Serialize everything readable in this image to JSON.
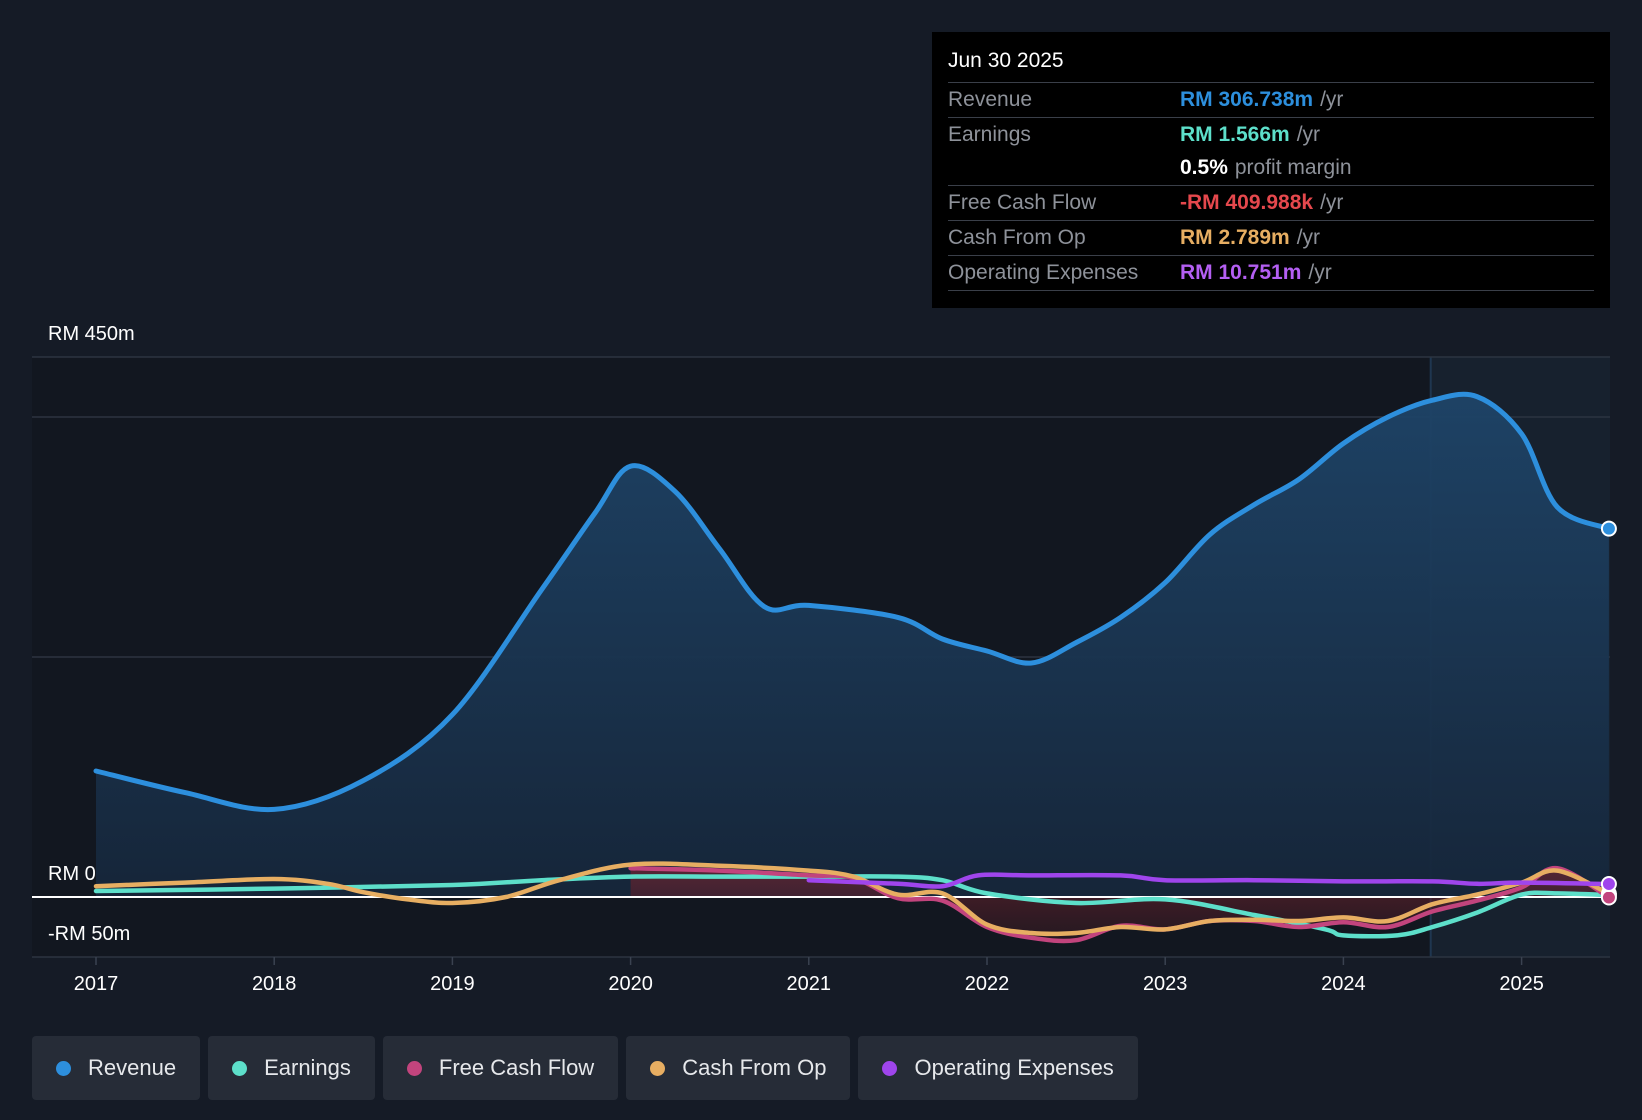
{
  "chart_data": {
    "type": "area",
    "title": "",
    "y_axis": {
      "label_top": "RM 450m",
      "label_zero": "RM 0",
      "label_bottom": "-RM 50m",
      "ylim": [
        -50,
        450
      ]
    },
    "x_ticks": [
      "2017",
      "2018",
      "2019",
      "2020",
      "2021",
      "2022",
      "2023",
      "2024",
      "2025"
    ],
    "x_range": [
      2016.63,
      2025.49
    ],
    "forecast_start": 2024.49,
    "series": [
      {
        "name": "Revenue",
        "color": "#2d8fdd",
        "fill": true,
        "x": [
          2017.0,
          2017.5,
          2018.0,
          2018.5,
          2019.0,
          2019.5,
          2019.8,
          2020.0,
          2020.25,
          2020.5,
          2020.75,
          2021.0,
          2021.5,
          2021.75,
          2022.0,
          2022.25,
          2022.5,
          2022.75,
          2023.0,
          2023.25,
          2023.5,
          2023.75,
          2024.0,
          2024.25,
          2024.5,
          2024.75,
          2025.0,
          2025.2,
          2025.49
        ],
        "values": [
          105,
          87,
          73,
          97,
          152,
          256,
          320,
          359,
          338,
          290,
          242,
          243,
          233,
          215,
          205,
          195,
          212,
          233,
          262,
          302,
          327,
          348,
          378,
          400,
          414,
          417,
          386,
          325,
          307
        ]
      },
      {
        "name": "Earnings",
        "color": "#5ddfca",
        "fill": false,
        "x": [
          2017.0,
          2018.0,
          2019.0,
          2019.5,
          2020.0,
          2020.5,
          2021.0,
          2021.5,
          2021.75,
          2022.0,
          2022.5,
          2023.0,
          2023.5,
          2023.9,
          2024.0,
          2024.3,
          2024.5,
          2024.75,
          2025.0,
          2025.2,
          2025.49
        ],
        "values": [
          5,
          7,
          10,
          14,
          17,
          17,
          17,
          17,
          14,
          3,
          -5,
          -2,
          -15,
          -27,
          -32,
          -32,
          -25,
          -13,
          2,
          3,
          1.6
        ]
      },
      {
        "name": "Free Cash Flow",
        "color": "#c2447d",
        "fill": false,
        "x": [
          2020.0,
          2020.5,
          2021.0,
          2021.25,
          2021.5,
          2021.75,
          2022.0,
          2022.25,
          2022.5,
          2022.75,
          2023.0,
          2023.25,
          2023.5,
          2023.75,
          2024.0,
          2024.25,
          2024.5,
          2024.75,
          2025.0,
          2025.2,
          2025.49
        ],
        "values": [
          24,
          22,
          18,
          16,
          -1,
          -3,
          -25,
          -34,
          -36,
          -24,
          -27,
          -20,
          -20,
          -25,
          -21,
          -25,
          -12,
          -3,
          8,
          24,
          -0.4
        ]
      },
      {
        "name": "Cash From Op",
        "color": "#e7ae62",
        "fill": false,
        "x": [
          2017.0,
          2017.5,
          2018.0,
          2018.3,
          2018.5,
          2018.75,
          2019.0,
          2019.3,
          2019.6,
          2020.0,
          2020.5,
          2021.0,
          2021.25,
          2021.5,
          2021.75,
          2022.0,
          2022.25,
          2022.5,
          2022.75,
          2023.0,
          2023.25,
          2023.5,
          2023.75,
          2024.0,
          2024.25,
          2024.5,
          2024.75,
          2025.0,
          2025.2,
          2025.49
        ],
        "values": [
          9,
          12,
          15,
          11,
          4,
          -2,
          -5,
          0,
          14,
          27,
          26,
          22,
          17,
          2,
          3,
          -23,
          -30,
          -30,
          -25,
          -27,
          -20,
          -19,
          -20,
          -17,
          -20,
          -6,
          2,
          12,
          22,
          2.8
        ]
      },
      {
        "name": "Operating Expenses",
        "color": "#9f45ec",
        "fill": false,
        "x": [
          2021.0,
          2021.5,
          2021.75,
          2021.95,
          2022.25,
          2022.75,
          2023.0,
          2023.5,
          2024.0,
          2024.5,
          2024.75,
          2025.0,
          2025.49
        ],
        "values": [
          14,
          11,
          9,
          18,
          18,
          18,
          14,
          14,
          13,
          13,
          11,
          12,
          10.8
        ]
      }
    ],
    "tooltip": {
      "date": "Jun 30 2025",
      "rows": [
        {
          "label": "Revenue",
          "value": "RM 306.738m",
          "unit": "/yr",
          "color": "#2d8fdd"
        },
        {
          "label": "Earnings",
          "value": "RM 1.566m",
          "unit": "/yr",
          "color": "#5ddfca"
        },
        {
          "label": "",
          "value": "0.5%",
          "unit": "profit margin",
          "color": "#ffffff"
        },
        {
          "label": "Free Cash Flow",
          "value": "-RM 409.988k",
          "unit": "/yr",
          "color": "#e5484d"
        },
        {
          "label": "Cash From Op",
          "value": "RM 2.789m",
          "unit": "/yr",
          "color": "#e7ae62"
        },
        {
          "label": "Operating Expenses",
          "value": "RM 10.751m",
          "unit": "/yr",
          "color": "#b45ff2"
        }
      ]
    },
    "legend": [
      {
        "name": "Revenue",
        "color": "#2d8fdd"
      },
      {
        "name": "Earnings",
        "color": "#5ddfca"
      },
      {
        "name": "Free Cash Flow",
        "color": "#c2447d"
      },
      {
        "name": "Cash From Op",
        "color": "#e7ae62"
      },
      {
        "name": "Operating Expenses",
        "color": "#9f45ec"
      }
    ]
  }
}
